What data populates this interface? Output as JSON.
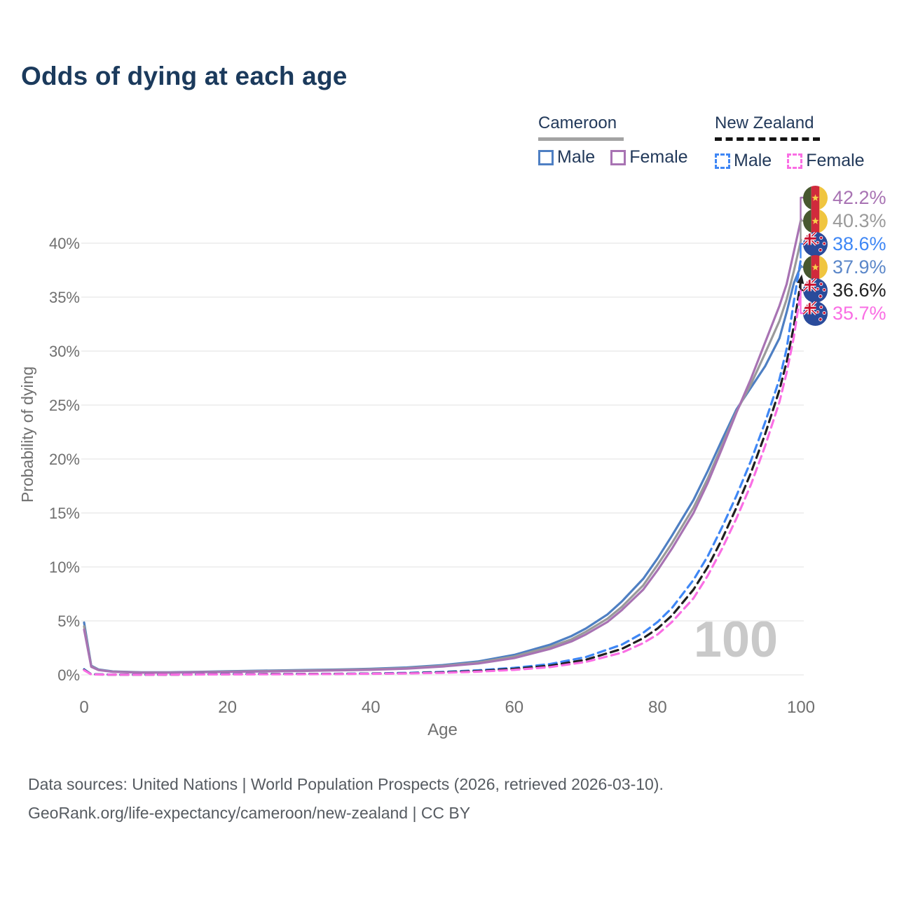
{
  "page": {
    "title": "Odds of dying at each age",
    "watermark_age": "100"
  },
  "legend": {
    "groups": [
      {
        "country": "Cameroon",
        "items": [
          {
            "label": "Male"
          },
          {
            "label": "Female"
          }
        ]
      },
      {
        "country": "New Zealand",
        "items": [
          {
            "label": "Male"
          },
          {
            "label": "Female"
          }
        ]
      }
    ]
  },
  "footer": {
    "line1": "Data sources: United Nations | World Population Prospects (2026, retrieved 2026-03-10).",
    "line2": "GeoRank.org/life-expectancy/cameroon/new-zealand | CC BY"
  },
  "chart_data": {
    "type": "line",
    "title": "Odds of dying at each age",
    "xlabel": "Age",
    "ylabel": "Probability of dying",
    "xlim": [
      0,
      100
    ],
    "ylim_percent": [
      0,
      44
    ],
    "grid": true,
    "x_ticks": [
      {
        "label": "0",
        "value": 0
      },
      {
        "label": "20",
        "value": 20
      },
      {
        "label": "40",
        "value": 40
      },
      {
        "label": "60",
        "value": 60
      },
      {
        "label": "80",
        "value": 80
      },
      {
        "label": "100",
        "value": 100
      }
    ],
    "y_ticks": [
      {
        "label": "0%",
        "value": 0
      },
      {
        "label": "5%",
        "value": 5
      },
      {
        "label": "10%",
        "value": 10
      },
      {
        "label": "15%",
        "value": 15
      },
      {
        "label": "20%",
        "value": 20
      },
      {
        "label": "25%",
        "value": 25
      },
      {
        "label": "30%",
        "value": 30
      },
      {
        "label": "35%",
        "value": 35
      },
      {
        "label": "40%",
        "value": 40
      }
    ],
    "series": [
      {
        "name": "Cameroon Male",
        "country": "Cameroon",
        "sex": "Male",
        "style": "solid",
        "color": "#4e7fc3",
        "end_value_percent": 37.9,
        "points": [
          [
            0,
            4.85
          ],
          [
            1,
            0.85
          ],
          [
            2,
            0.5
          ],
          [
            4,
            0.32
          ],
          [
            8,
            0.24
          ],
          [
            12,
            0.24
          ],
          [
            16,
            0.28
          ],
          [
            20,
            0.33
          ],
          [
            25,
            0.39
          ],
          [
            30,
            0.44
          ],
          [
            35,
            0.49
          ],
          [
            40,
            0.56
          ],
          [
            45,
            0.68
          ],
          [
            50,
            0.9
          ],
          [
            55,
            1.25
          ],
          [
            60,
            1.85
          ],
          [
            65,
            2.8
          ],
          [
            68,
            3.6
          ],
          [
            70,
            4.3
          ],
          [
            73,
            5.6
          ],
          [
            75,
            6.8
          ],
          [
            78,
            8.9
          ],
          [
            80,
            10.8
          ],
          [
            82,
            12.9
          ],
          [
            85,
            16.2
          ],
          [
            87,
            18.9
          ],
          [
            89,
            21.8
          ],
          [
            91,
            24.6
          ],
          [
            93,
            26.6
          ],
          [
            95,
            28.6
          ],
          [
            97,
            31.2
          ],
          [
            98,
            33.6
          ],
          [
            99,
            36.3
          ],
          [
            100,
            37.9
          ]
        ]
      },
      {
        "name": "Cameroon Both Sexes",
        "country": "Cameroon",
        "sex": "Both",
        "style": "solid",
        "color": "#9a9a9a",
        "end_value_percent": 40.3,
        "points": [
          [
            0,
            4.5
          ],
          [
            1,
            0.8
          ],
          [
            2,
            0.47
          ],
          [
            4,
            0.3
          ],
          [
            8,
            0.22
          ],
          [
            12,
            0.22
          ],
          [
            16,
            0.26
          ],
          [
            20,
            0.3
          ],
          [
            25,
            0.36
          ],
          [
            30,
            0.4
          ],
          [
            35,
            0.45
          ],
          [
            40,
            0.51
          ],
          [
            45,
            0.62
          ],
          [
            50,
            0.83
          ],
          [
            55,
            1.15
          ],
          [
            60,
            1.7
          ],
          [
            65,
            2.6
          ],
          [
            68,
            3.3
          ],
          [
            70,
            4.0
          ],
          [
            73,
            5.2
          ],
          [
            75,
            6.3
          ],
          [
            78,
            8.3
          ],
          [
            80,
            10.2
          ],
          [
            82,
            12.2
          ],
          [
            85,
            15.5
          ],
          [
            87,
            18.2
          ],
          [
            89,
            21.3
          ],
          [
            91,
            24.4
          ],
          [
            93,
            26.9
          ],
          [
            95,
            29.8
          ],
          [
            97,
            32.8
          ],
          [
            98,
            34.8
          ],
          [
            99,
            37.4
          ],
          [
            100,
            40.3
          ]
        ]
      },
      {
        "name": "Cameroon Female",
        "country": "Cameroon",
        "sex": "Female",
        "style": "solid",
        "color": "#a873b3",
        "end_value_percent": 42.2,
        "points": [
          [
            0,
            4.2
          ],
          [
            1,
            0.75
          ],
          [
            2,
            0.44
          ],
          [
            4,
            0.28
          ],
          [
            8,
            0.2
          ],
          [
            12,
            0.2
          ],
          [
            16,
            0.24
          ],
          [
            20,
            0.27
          ],
          [
            25,
            0.32
          ],
          [
            30,
            0.36
          ],
          [
            35,
            0.41
          ],
          [
            40,
            0.47
          ],
          [
            45,
            0.57
          ],
          [
            50,
            0.77
          ],
          [
            55,
            1.05
          ],
          [
            60,
            1.55
          ],
          [
            65,
            2.4
          ],
          [
            68,
            3.1
          ],
          [
            70,
            3.75
          ],
          [
            73,
            4.9
          ],
          [
            75,
            6.0
          ],
          [
            78,
            7.9
          ],
          [
            80,
            9.7
          ],
          [
            82,
            11.7
          ],
          [
            85,
            15.0
          ],
          [
            87,
            17.8
          ],
          [
            89,
            21.0
          ],
          [
            91,
            24.3
          ],
          [
            93,
            27.4
          ],
          [
            95,
            30.8
          ],
          [
            97,
            34.2
          ],
          [
            98,
            36.2
          ],
          [
            99,
            39.2
          ],
          [
            100,
            42.2
          ]
        ]
      },
      {
        "name": "New Zealand Male",
        "country": "New Zealand",
        "sex": "Male",
        "style": "dashed",
        "color": "#3f87f5",
        "end_value_percent": 38.6,
        "points": [
          [
            0,
            0.52
          ],
          [
            1,
            0.05
          ],
          [
            5,
            0.02
          ],
          [
            10,
            0.02
          ],
          [
            15,
            0.04
          ],
          [
            20,
            0.07
          ],
          [
            25,
            0.08
          ],
          [
            30,
            0.09
          ],
          [
            35,
            0.1
          ],
          [
            40,
            0.13
          ],
          [
            45,
            0.18
          ],
          [
            50,
            0.27
          ],
          [
            55,
            0.42
          ],
          [
            60,
            0.65
          ],
          [
            65,
            1.0
          ],
          [
            70,
            1.65
          ],
          [
            75,
            2.8
          ],
          [
            78,
            3.9
          ],
          [
            80,
            4.9
          ],
          [
            82,
            6.2
          ],
          [
            85,
            8.8
          ],
          [
            87,
            11.0
          ],
          [
            89,
            13.7
          ],
          [
            91,
            16.6
          ],
          [
            93,
            19.8
          ],
          [
            95,
            23.4
          ],
          [
            97,
            27.4
          ],
          [
            98,
            30.2
          ],
          [
            99,
            34.6
          ],
          [
            100,
            38.6
          ]
        ]
      },
      {
        "name": "New Zealand Both Sexes",
        "country": "New Zealand",
        "sex": "Both",
        "style": "dashed",
        "color": "#1f1f1f",
        "end_value_percent": 36.6,
        "arrow_end": true,
        "points": [
          [
            0,
            0.47
          ],
          [
            1,
            0.045
          ],
          [
            5,
            0.015
          ],
          [
            10,
            0.015
          ],
          [
            15,
            0.035
          ],
          [
            20,
            0.06
          ],
          [
            25,
            0.07
          ],
          [
            30,
            0.08
          ],
          [
            35,
            0.09
          ],
          [
            40,
            0.11
          ],
          [
            45,
            0.15
          ],
          [
            50,
            0.23
          ],
          [
            55,
            0.36
          ],
          [
            60,
            0.55
          ],
          [
            65,
            0.85
          ],
          [
            70,
            1.4
          ],
          [
            75,
            2.4
          ],
          [
            78,
            3.4
          ],
          [
            80,
            4.3
          ],
          [
            82,
            5.5
          ],
          [
            85,
            7.9
          ],
          [
            87,
            10.0
          ],
          [
            89,
            12.6
          ],
          [
            91,
            15.5
          ],
          [
            93,
            18.7
          ],
          [
            95,
            22.3
          ],
          [
            97,
            26.4
          ],
          [
            98,
            29.0
          ],
          [
            99,
            32.3
          ],
          [
            100,
            36.6
          ]
        ]
      },
      {
        "name": "New Zealand Female",
        "country": "New Zealand",
        "sex": "Female",
        "style": "dashed",
        "color": "#fa6ee4",
        "end_value_percent": 35.7,
        "points": [
          [
            0,
            0.43
          ],
          [
            1,
            0.04
          ],
          [
            5,
            0.012
          ],
          [
            10,
            0.012
          ],
          [
            15,
            0.03
          ],
          [
            20,
            0.045
          ],
          [
            25,
            0.05
          ],
          [
            30,
            0.06
          ],
          [
            35,
            0.075
          ],
          [
            40,
            0.095
          ],
          [
            45,
            0.13
          ],
          [
            50,
            0.19
          ],
          [
            55,
            0.3
          ],
          [
            60,
            0.46
          ],
          [
            65,
            0.72
          ],
          [
            70,
            1.2
          ],
          [
            75,
            2.05
          ],
          [
            78,
            2.95
          ],
          [
            80,
            3.75
          ],
          [
            82,
            4.9
          ],
          [
            85,
            7.1
          ],
          [
            87,
            9.2
          ],
          [
            89,
            11.7
          ],
          [
            91,
            14.5
          ],
          [
            93,
            17.6
          ],
          [
            95,
            21.2
          ],
          [
            97,
            25.3
          ],
          [
            98,
            28.0
          ],
          [
            99,
            31.3
          ],
          [
            100,
            35.7
          ]
        ]
      }
    ],
    "end_labels": [
      {
        "text": "42.2%",
        "value_percent": 42.2,
        "color": "#a873b3",
        "country": "Cameroon",
        "flag": "cameroon",
        "series": "Cameroon Female"
      },
      {
        "text": "40.3%",
        "value_percent": 40.3,
        "color": "#9a9a9a",
        "country": "Cameroon",
        "flag": "cameroon",
        "series": "Cameroon Both Sexes"
      },
      {
        "text": "38.6%",
        "value_percent": 38.6,
        "color": "#3f87f5",
        "country": "New Zealand",
        "flag": "nz",
        "series": "New Zealand Male"
      },
      {
        "text": "37.9%",
        "value_percent": 37.9,
        "color": "#5b87c9",
        "country": "Cameroon",
        "flag": "cameroon",
        "series": "Cameroon Male"
      },
      {
        "text": "36.6%",
        "value_percent": 36.6,
        "color": "#222222",
        "country": "New Zealand",
        "flag": "nz",
        "series": "New Zealand Both Sexes"
      },
      {
        "text": "35.7%",
        "value_percent": 35.7,
        "color": "#fa6ee4",
        "country": "New Zealand",
        "flag": "nz",
        "series": "New Zealand Female"
      }
    ],
    "watermark": "100",
    "colors": {
      "title": "#1b3a5c",
      "tick": "#6f6f6f",
      "gridline": "#e8e8e8",
      "cameroon_male": "#4e7fc3",
      "cameroon_female": "#a873b3",
      "cameroon_both": "#9a9a9a",
      "nz_male": "#3f87f5",
      "nz_female": "#fa6ee4",
      "nz_both": "#1f1f1f"
    }
  }
}
